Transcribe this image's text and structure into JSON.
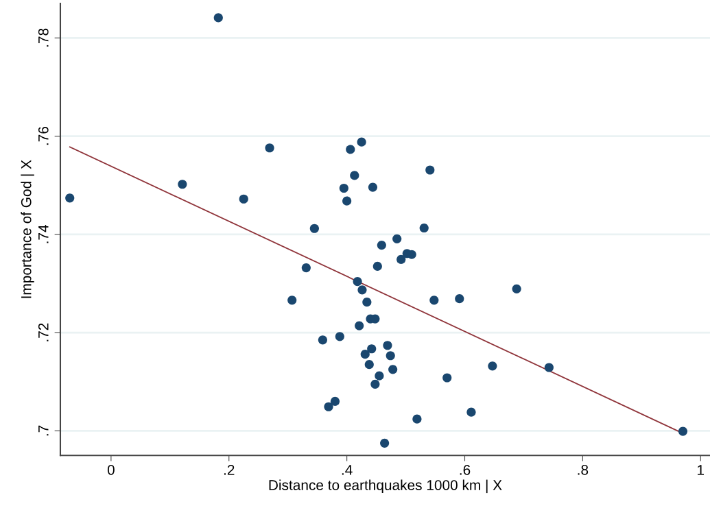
{
  "chart_data": {
    "type": "scatter",
    "xlabel": "Distance to earthquakes 1000 km | X",
    "ylabel": "Importance of God | X",
    "xlim": [
      -0.086,
      1.016
    ],
    "ylim": [
      0.695,
      0.787
    ],
    "xticks": [
      0,
      {
        "value": 0.2,
        "label": ".2"
      },
      {
        "value": 0.4,
        "label": ".4"
      },
      {
        "value": 0.6,
        "label": ".6"
      },
      {
        "value": 0.8,
        "label": ".8"
      },
      1
    ],
    "yticks": [
      {
        "value": 0.7,
        "label": ".7"
      },
      {
        "value": 0.72,
        "label": ".72"
      },
      {
        "value": 0.74,
        "label": ".74"
      },
      {
        "value": 0.76,
        "label": ".76"
      },
      {
        "value": 0.78,
        "label": ".78"
      }
    ],
    "grid": "y",
    "marker": "circle",
    "series": [
      {
        "color": "#1a476f",
        "x": [
          0.182,
          -0.07,
          0.121,
          0.225,
          0.269,
          0.345,
          0.406,
          0.425,
          0.413,
          0.395,
          0.4,
          0.444,
          0.541,
          0.531,
          0.485,
          0.459,
          0.502,
          0.51,
          0.492,
          0.452,
          0.331,
          0.418,
          0.426,
          0.307,
          0.434,
          0.548,
          0.591,
          0.44,
          0.448,
          0.421,
          0.388,
          0.359,
          0.469,
          0.442,
          0.431,
          0.474,
          0.438,
          0.478,
          0.455,
          0.448,
          0.57,
          0.38,
          0.369,
          0.519,
          0.611,
          0.464,
          0.688,
          0.743,
          0.647,
          0.97
        ],
        "values": [
          0.7841,
          0.7474,
          0.7502,
          0.7472,
          0.7576,
          0.7412,
          0.7573,
          0.7588,
          0.752,
          0.7494,
          0.7468,
          0.7496,
          0.7531,
          0.7413,
          0.7391,
          0.7378,
          0.7361,
          0.7359,
          0.7349,
          0.7335,
          0.7332,
          0.7304,
          0.7287,
          0.7266,
          0.7262,
          0.7266,
          0.7269,
          0.7228,
          0.7228,
          0.7214,
          0.7192,
          0.7185,
          0.7174,
          0.7167,
          0.7156,
          0.7153,
          0.7135,
          0.7125,
          0.7112,
          0.7095,
          0.7108,
          0.706,
          0.7049,
          0.7024,
          0.7038,
          0.6975,
          0.7289,
          0.7129,
          0.7132,
          0.6999
        ]
      },
      {
        "type": "line",
        "color": "#90353b",
        "marker": "none",
        "line_style": "solid",
        "x": [
          -0.07,
          0.97
        ],
        "values": [
          0.7578,
          0.6995
        ]
      }
    ]
  }
}
